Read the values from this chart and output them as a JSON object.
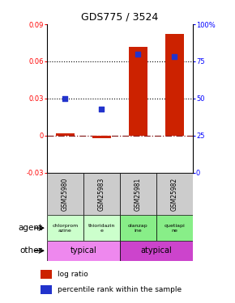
{
  "title": "GDS775 / 3524",
  "samples": [
    "GSM25980",
    "GSM25983",
    "GSM25981",
    "GSM25982"
  ],
  "log_ratio": [
    0.002,
    -0.002,
    0.072,
    0.082
  ],
  "percentile_rank": [
    50,
    43,
    80,
    78
  ],
  "ylim_left": [
    -0.03,
    0.09
  ],
  "ylim_right": [
    0,
    100
  ],
  "yticks_left": [
    -0.03,
    0,
    0.03,
    0.06,
    0.09
  ],
  "yticks_right": [
    0,
    25,
    50,
    75,
    100
  ],
  "ytick_labels_left": [
    "-0.03",
    "0",
    "0.03",
    "0.06",
    "0.09"
  ],
  "ytick_labels_right": [
    "0",
    "25",
    "50",
    "75",
    "100%"
  ],
  "hlines": [
    0.03,
    0.06
  ],
  "bar_color": "#cc2200",
  "dot_color": "#2233cc",
  "zero_line_color": "#882222",
  "agent_labels": [
    "chlorprom\nazine",
    "thioridazin\ne",
    "olanzap\nine",
    "quetiapi\nne"
  ],
  "agent_colors_left": "#ccffcc",
  "agent_colors_right": "#88ee88",
  "other_color_left": "#ee88ee",
  "other_color_right": "#cc44cc",
  "other_labels": [
    "typical",
    "atypical"
  ],
  "gsm_bg": "#cccccc",
  "legend_bar_color": "#cc2200",
  "legend_dot_color": "#2233cc"
}
